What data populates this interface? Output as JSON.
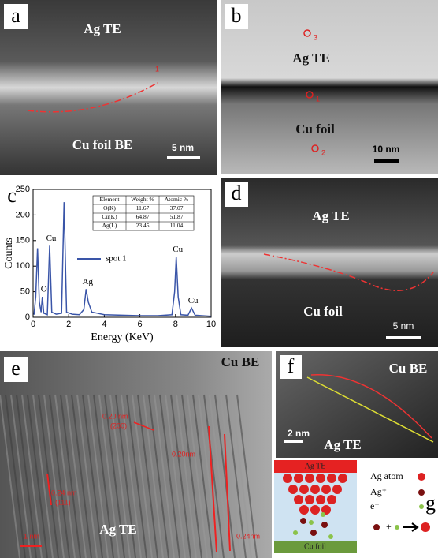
{
  "panels": {
    "a": {
      "label": "a",
      "top": "Ag TE",
      "bottom": "Cu foil BE",
      "marker": "1",
      "scale": "5 nm"
    },
    "b": {
      "label": "b",
      "top": "Ag TE",
      "bottom": "Cu foil",
      "markers": [
        "3",
        "1",
        "2"
      ],
      "scale": "10 nm"
    },
    "c": {
      "label": "c"
    },
    "d": {
      "label": "d",
      "top": "Ag TE",
      "bottom": "Cu foil",
      "scale": "5 nm"
    },
    "e": {
      "label": "e",
      "top": "Cu BE",
      "bottom": "Ag TE",
      "spacings": [
        "0.20 nm",
        "(200)",
        "0.24 nm",
        "(111)",
        "0.20nm",
        "0.24nm"
      ],
      "scale": "1 nm"
    },
    "f": {
      "label": "f",
      "top": "Cu BE",
      "bottom": "Ag TE",
      "scale": "2 nm"
    },
    "g": {
      "label": "g",
      "top": "Ag TE",
      "bottom": "Cu foil",
      "legend": [
        "Ag  atom",
        "Ag⁺",
        "e⁻"
      ]
    }
  },
  "eds_table": {
    "header": [
      "Element",
      "Weight %",
      "Atomic %"
    ],
    "rows": [
      [
        "O(K)",
        "11.67",
        "37.07"
      ],
      [
        "Cu(K)",
        "64.87",
        "51.87"
      ],
      [
        "Ag(L)",
        "23.45",
        "11.04"
      ]
    ]
  },
  "chart_data": {
    "type": "line",
    "xlabel": "Energy (KeV)",
    "ylabel": "Counts",
    "xlim": [
      0,
      10
    ],
    "ylim": [
      0,
      250
    ],
    "xticks": [
      0,
      2,
      4,
      6,
      8,
      10
    ],
    "yticks": [
      0,
      50,
      100,
      150,
      200,
      250
    ],
    "x": [
      0.05,
      0.15,
      0.25,
      0.35,
      0.45,
      0.52,
      0.6,
      0.8,
      0.93,
      1.05,
      1.3,
      1.6,
      1.74,
      1.88,
      2.2,
      2.6,
      2.85,
      2.98,
      3.1,
      3.3,
      3.6,
      4,
      5,
      6,
      7,
      7.8,
      7.95,
      8.04,
      8.15,
      8.3,
      8.7,
      8.9,
      9.1,
      9.5,
      10
    ],
    "series": [
      {
        "name": "spot 1",
        "color": "#3a55a8",
        "values": [
          5,
          40,
          135,
          30,
          10,
          40,
          8,
          5,
          140,
          10,
          6,
          8,
          225,
          10,
          6,
          5,
          15,
          55,
          30,
          10,
          8,
          5,
          4,
          3,
          3,
          5,
          50,
          118,
          40,
          5,
          4,
          18,
          4,
          3,
          2
        ]
      }
    ],
    "annotations": [
      {
        "text": "O",
        "x": 0.52,
        "y": 40
      },
      {
        "text": "Cu",
        "x": 0.93,
        "y": 140
      },
      {
        "text": "Ag",
        "x": 2.98,
        "y": 55
      },
      {
        "text": "Cu",
        "x": 8.04,
        "y": 118
      },
      {
        "text": "Cu",
        "x": 8.9,
        "y": 18
      }
    ]
  }
}
